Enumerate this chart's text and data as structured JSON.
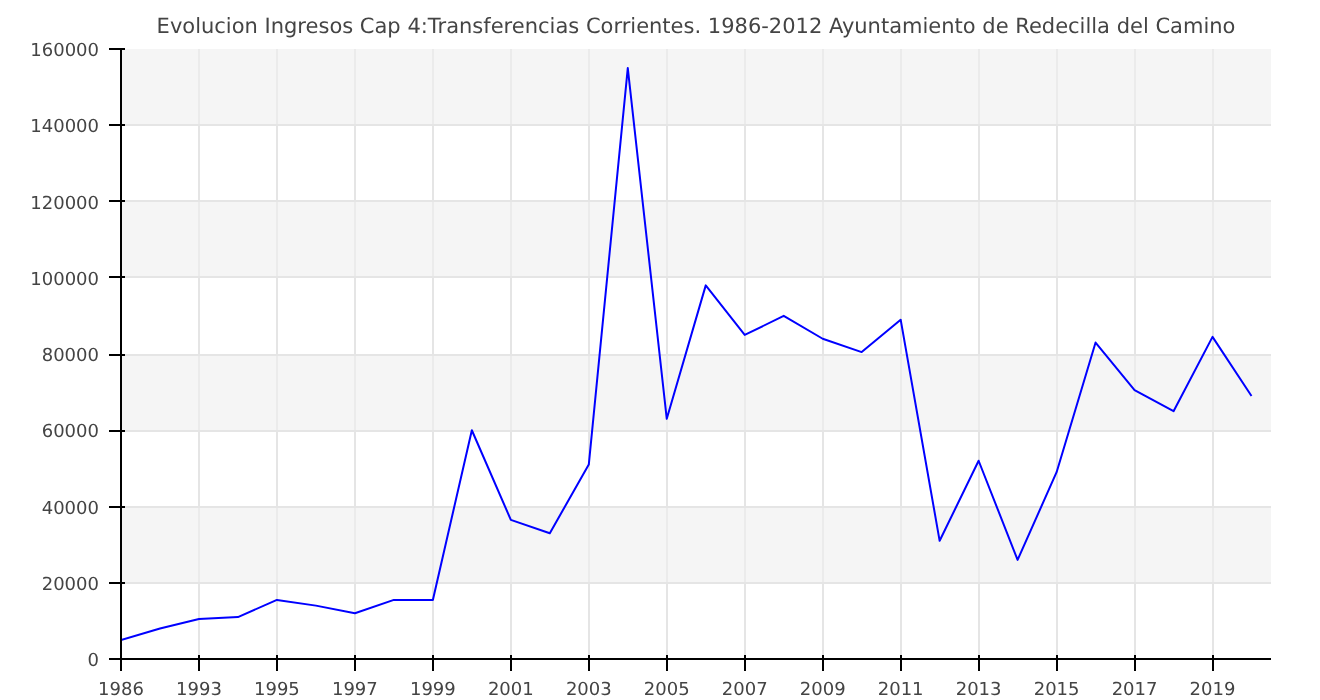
{
  "chart_data": {
    "type": "line",
    "title": "Evolucion Ingresos Cap 4:Transferencias Corrientes. 1986-2012 Ayuntamiento de Redecilla del Camino",
    "categories": [
      "1986",
      null,
      "1993",
      null,
      "1995",
      null,
      "1997",
      null,
      "1999",
      null,
      "2001",
      null,
      "2003",
      null,
      "2005",
      null,
      "2007",
      null,
      "2009",
      null,
      "2011",
      null,
      "2013",
      null,
      "2015",
      null,
      "2017",
      null,
      "2019",
      null
    ],
    "series": [
      {
        "color": "#0000ff",
        "values": [
          5000,
          8000,
          10500,
          11000,
          15500,
          14000,
          12000,
          15500,
          15500,
          60000,
          36500,
          33000,
          51000,
          155000,
          63000,
          98000,
          85000,
          90000,
          84000,
          80500,
          89000,
          31000,
          52000,
          26000,
          49000,
          83000,
          70500,
          65000,
          84500,
          69000
        ]
      }
    ],
    "ylim": [
      0,
      160000
    ],
    "yticks": [
      0,
      20000,
      40000,
      60000,
      80000,
      100000,
      120000,
      140000,
      160000
    ],
    "grid": true,
    "marker": "none",
    "line_style": "solid"
  }
}
